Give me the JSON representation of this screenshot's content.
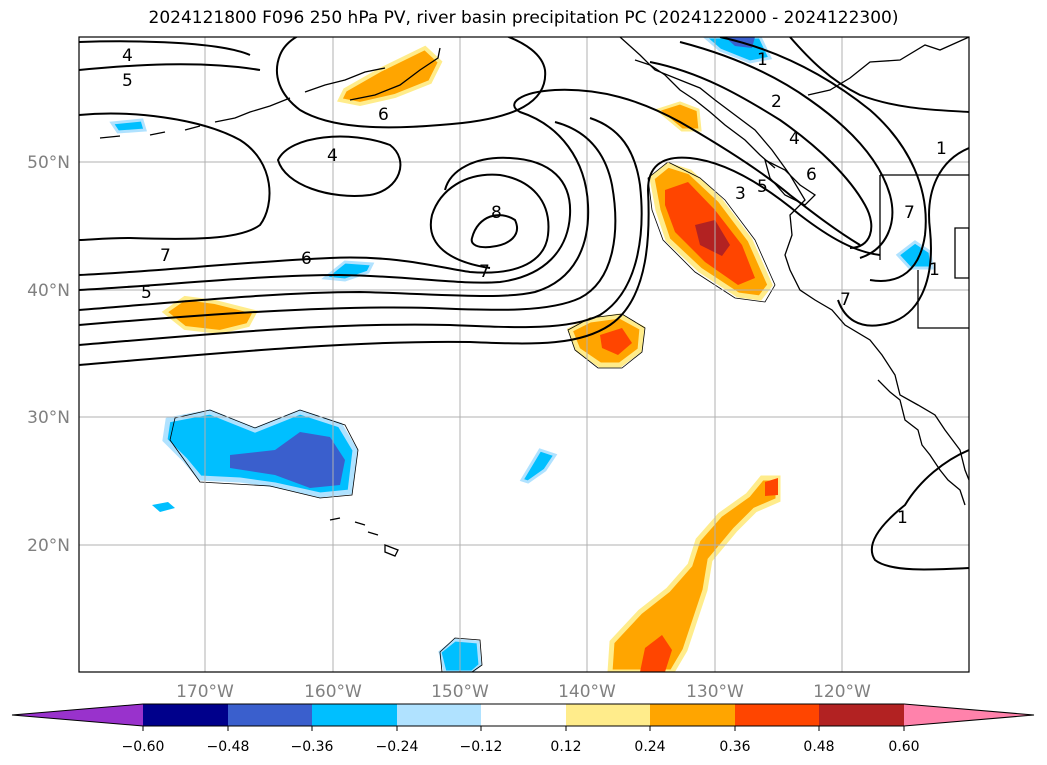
{
  "title": "2024121800 F096 250 hPa PV, river basin precipitation PC (2024122000 - 2024122300)",
  "map": {
    "lat_labels": [
      "50°N",
      "40°N",
      "30°N",
      "20°N"
    ],
    "lon_labels": [
      "170°W",
      "160°W",
      "150°W",
      "140°W",
      "130°W",
      "120°W"
    ],
    "contour_labels": [
      "4",
      "5",
      "6",
      "4",
      "8",
      "7",
      "7",
      "6",
      "5",
      "1",
      "2",
      "4",
      "3",
      "5",
      "6",
      "1",
      "1",
      "7",
      "7",
      "1"
    ]
  },
  "colorbar": {
    "tick_labels": [
      "−0.60",
      "−0.48",
      "−0.36",
      "−0.24",
      "−0.12",
      "0.12",
      "0.24",
      "0.36",
      "0.48",
      "0.60"
    ],
    "colors": [
      "#9932CC",
      "#00008B",
      "#3A5FCD",
      "#00BFFF",
      "#B0E2FF",
      "#FFFFFF",
      "#FFEC8B",
      "#FFA500",
      "#FF4500",
      "#B22222",
      "#FF82AB"
    ]
  }
}
